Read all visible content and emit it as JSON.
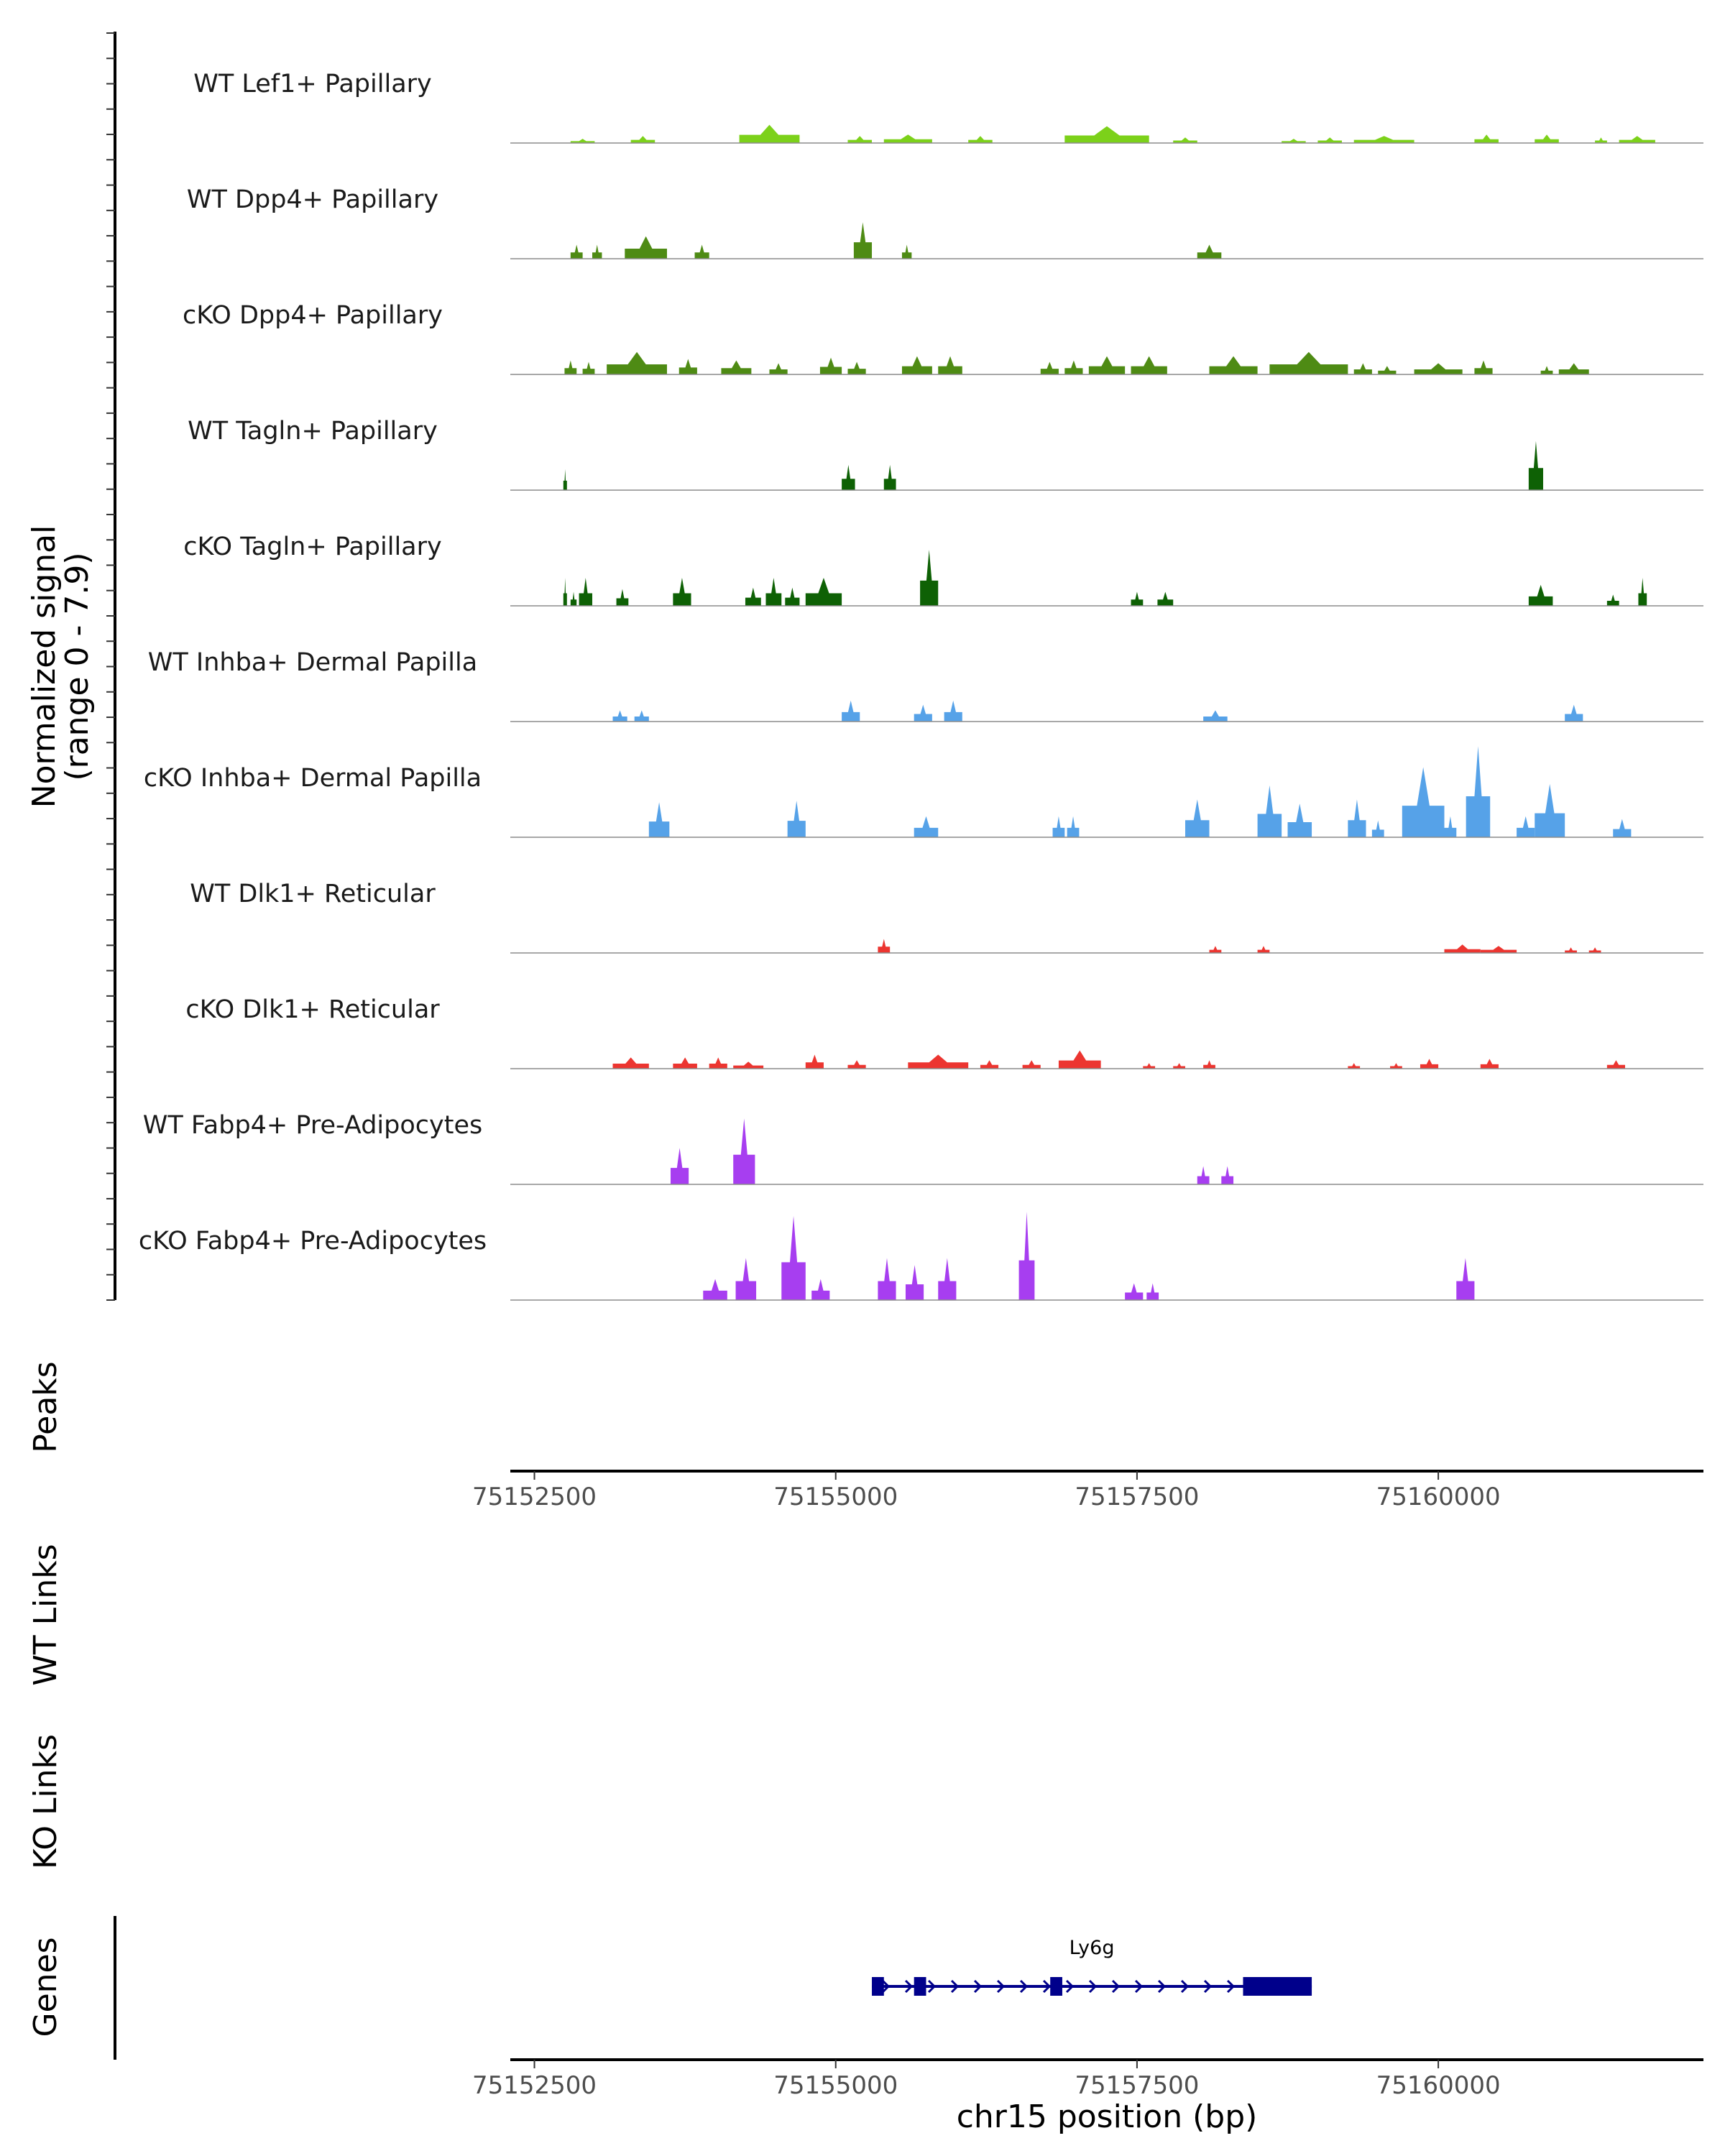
{
  "chart_data": {
    "type": "area",
    "title": "",
    "region": {
      "chrom": "chr15",
      "xlim": [
        75152300,
        75162200
      ]
    },
    "coverage": {
      "ylabel": "Normalized signal\n(range 0 - 7.9)",
      "ylabel_lines": [
        "Normalized signal",
        "(range 0 - 7.9)"
      ],
      "ylim": [
        0,
        7.9
      ],
      "tracks": [
        {
          "name": "WT Lef1+ Papillary",
          "color": "#7CD11A",
          "peaks": [
            [
              75152800,
              75153000,
              0.3
            ],
            [
              75153300,
              75153500,
              0.5
            ],
            [
              75154200,
              75154700,
              1.3
            ],
            [
              75155100,
              75155300,
              0.5
            ],
            [
              75155400,
              75155800,
              0.6
            ],
            [
              75156100,
              75156300,
              0.5
            ],
            [
              75156900,
              75157600,
              1.2
            ],
            [
              75157800,
              75158000,
              0.4
            ],
            [
              75158700,
              75158900,
              0.3
            ],
            [
              75159000,
              75159200,
              0.4
            ],
            [
              75159300,
              75159800,
              0.5
            ],
            [
              75160300,
              75160500,
              0.6
            ],
            [
              75160800,
              75161000,
              0.6
            ],
            [
              75161300,
              75161400,
              0.4
            ],
            [
              75161500,
              75161800,
              0.5
            ]
          ]
        },
        {
          "name": "WT Dpp4+ Papillary",
          "color": "#4E8B14",
          "peaks": [
            [
              75152800,
              75152900,
              1.0
            ],
            [
              75152980,
              75153060,
              1.0
            ],
            [
              75153250,
              75153600,
              1.6
            ],
            [
              75153830,
              75153950,
              1.0
            ],
            [
              75155150,
              75155300,
              2.6
            ],
            [
              75155550,
              75155630,
              1.0
            ],
            [
              75158000,
              75158200,
              1.0
            ]
          ]
        },
        {
          "name": "cKO Dpp4+ Papillary",
          "color": "#4E8B14",
          "peaks": [
            [
              75152750,
              75152850,
              1.0
            ],
            [
              75152900,
              75153000,
              0.9
            ],
            [
              75153100,
              75153600,
              1.6
            ],
            [
              75153700,
              75153850,
              1.1
            ],
            [
              75154050,
              75154300,
              1.0
            ],
            [
              75154450,
              75154600,
              0.8
            ],
            [
              75154870,
              75155050,
              1.2
            ],
            [
              75155100,
              75155250,
              0.9
            ],
            [
              75155550,
              75155800,
              1.3
            ],
            [
              75155850,
              75156050,
              1.3
            ],
            [
              75156700,
              75156850,
              0.9
            ],
            [
              75156900,
              75157050,
              1.0
            ],
            [
              75157100,
              75157400,
              1.3
            ],
            [
              75157450,
              75157750,
              1.3
            ],
            [
              75158100,
              75158500,
              1.3
            ],
            [
              75158600,
              75159250,
              1.6
            ],
            [
              75159300,
              75159450,
              0.8
            ],
            [
              75159500,
              75159650,
              0.6
            ],
            [
              75159800,
              75160200,
              0.8
            ],
            [
              75160300,
              75160450,
              1.0
            ],
            [
              75160850,
              75160950,
              0.6
            ],
            [
              75161000,
              75161250,
              0.8
            ]
          ]
        },
        {
          "name": "WT Tagln+ Papillary",
          "color": "#0E6105",
          "peaks": [
            [
              75152740,
              75152770,
              1.5
            ],
            [
              75155050,
              75155160,
              1.8
            ],
            [
              75155400,
              75155500,
              1.8
            ],
            [
              75160750,
              75160870,
              3.5
            ]
          ]
        },
        {
          "name": "cKO Tagln+ Papillary",
          "color": "#0E6105",
          "peaks": [
            [
              75152740,
              75152770,
              2.0
            ],
            [
              75152800,
              75152850,
              1.0
            ],
            [
              75152870,
              75152980,
              2.0
            ],
            [
              75153180,
              75153280,
              1.2
            ],
            [
              75153650,
              75153800,
              2.0
            ],
            [
              75154250,
              75154380,
              1.3
            ],
            [
              75154420,
              75154550,
              2.0
            ],
            [
              75154580,
              75154700,
              1.3
            ],
            [
              75154750,
              75155050,
              2.0
            ],
            [
              75155700,
              75155850,
              4.0
            ],
            [
              75157450,
              75157550,
              1.0
            ],
            [
              75157670,
              75157800,
              1.0
            ],
            [
              75160750,
              75160950,
              1.5
            ],
            [
              75161400,
              75161500,
              0.8
            ],
            [
              75161660,
              75161730,
              2.0
            ]
          ]
        },
        {
          "name": "WT Inhba+ Dermal Papilla",
          "color": "#56A2E8",
          "peaks": [
            [
              75153150,
              75153270,
              0.8
            ],
            [
              75153330,
              75153450,
              0.8
            ],
            [
              75155050,
              75155200,
              1.5
            ],
            [
              75155650,
              75155800,
              1.2
            ],
            [
              75155900,
              75156050,
              1.5
            ],
            [
              75158050,
              75158250,
              0.8
            ],
            [
              75161050,
              75161200,
              1.2
            ]
          ]
        },
        {
          "name": "cKO Inhba+ Dermal Papilla",
          "color": "#56A2E8",
          "peaks": [
            [
              75153450,
              75153620,
              2.5
            ],
            [
              75154600,
              75154750,
              2.6
            ],
            [
              75155650,
              75155850,
              1.5
            ],
            [
              75156800,
              75156900,
              1.5
            ],
            [
              75156920,
              75157020,
              1.5
            ],
            [
              75157900,
              75158100,
              2.7
            ],
            [
              75158500,
              75158700,
              3.7
            ],
            [
              75158750,
              75158950,
              2.4
            ],
            [
              75159250,
              75159400,
              2.7
            ],
            [
              75159450,
              75159550,
              1.2
            ],
            [
              75159700,
              75160050,
              5.0
            ],
            [
              75160050,
              75160150,
              1.5
            ],
            [
              75160230,
              75160430,
              6.5
            ],
            [
              75160650,
              75160800,
              1.5
            ],
            [
              75160800,
              75161050,
              3.8
            ],
            [
              75161450,
              75161600,
              1.3
            ]
          ]
        },
        {
          "name": "WT Dlk1+ Reticular",
          "color": "#EC3530",
          "peaks": [
            [
              75155350,
              75155450,
              1.0
            ],
            [
              75158100,
              75158200,
              0.5
            ],
            [
              75158500,
              75158600,
              0.5
            ],
            [
              75160050,
              75160350,
              0.6
            ],
            [
              75160350,
              75160650,
              0.5
            ],
            [
              75161050,
              75161150,
              0.4
            ],
            [
              75161250,
              75161350,
              0.4
            ]
          ]
        },
        {
          "name": "cKO Dlk1+ Reticular",
          "color": "#EC3530",
          "peaks": [
            [
              75153150,
              75153450,
              0.8
            ],
            [
              75153650,
              75153850,
              0.8
            ],
            [
              75153950,
              75154100,
              0.8
            ],
            [
              75154150,
              75154400,
              0.5
            ],
            [
              75154750,
              75154900,
              1.0
            ],
            [
              75155100,
              75155250,
              0.6
            ],
            [
              75155600,
              75156100,
              1.0
            ],
            [
              75156200,
              75156350,
              0.6
            ],
            [
              75156550,
              75156700,
              0.6
            ],
            [
              75156850,
              75157200,
              1.3
            ],
            [
              75157550,
              75157650,
              0.4
            ],
            [
              75157800,
              75157900,
              0.4
            ],
            [
              75158050,
              75158150,
              0.6
            ],
            [
              75159250,
              75159350,
              0.4
            ],
            [
              75159600,
              75159700,
              0.4
            ],
            [
              75159850,
              75160000,
              0.7
            ],
            [
              75160350,
              75160500,
              0.7
            ],
            [
              75161400,
              75161550,
              0.6
            ]
          ]
        },
        {
          "name": "WT Fabp4+ Pre-Adipocytes",
          "color": "#A73EF0",
          "peaks": [
            [
              75153630,
              75153780,
              2.6
            ],
            [
              75154150,
              75154330,
              4.7
            ],
            [
              75158000,
              75158100,
              1.3
            ],
            [
              75158200,
              75158300,
              1.3
            ]
          ]
        },
        {
          "name": "cKO Fabp4+ Pre-Adipocytes",
          "color": "#A73EF0",
          "peaks": [
            [
              75153900,
              75154100,
              1.5
            ],
            [
              75154170,
              75154340,
              3.0
            ],
            [
              75154550,
              75154750,
              6.0
            ],
            [
              75154800,
              75154950,
              1.5
            ],
            [
              75155350,
              75155500,
              3.0
            ],
            [
              75155580,
              75155730,
              2.5
            ],
            [
              75155850,
              75156000,
              3.0
            ],
            [
              75156520,
              75156650,
              6.3
            ],
            [
              75157400,
              75157550,
              1.2
            ],
            [
              75157580,
              75157680,
              1.2
            ],
            [
              75160150,
              75160300,
              3.0
            ]
          ]
        }
      ]
    },
    "panels": [
      "Peaks",
      "WT Links",
      "KO Links",
      "Genes"
    ],
    "x_ticks": [
      75152500,
      75155000,
      75157500,
      75160000
    ],
    "xlabel": "chr15 position (bp)",
    "gene": {
      "name": "Ly6g",
      "strand": "+",
      "start": 75155300,
      "end": 75158950,
      "exons": [
        [
          75155300,
          75155400
        ],
        [
          75155650,
          75155750
        ],
        [
          75156780,
          75156880
        ],
        [
          75158380,
          75158950
        ]
      ]
    }
  }
}
